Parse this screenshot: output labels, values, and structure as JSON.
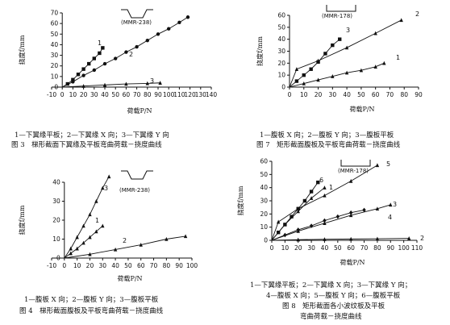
{
  "chart_data": [
    {
      "id": "fig3",
      "type": "line",
      "xlabel": "荷载P/N",
      "ylabel": "挠度f/mm",
      "annotation": "(MMR-238)",
      "xlim": [
        -10,
        140
      ],
      "ylim": [
        0,
        70
      ],
      "xticks": [
        -10,
        0,
        10,
        20,
        30,
        40,
        50,
        60,
        70,
        80,
        90,
        100,
        110,
        120,
        130,
        140
      ],
      "yticks": [
        0,
        10,
        20,
        30,
        40,
        50,
        60,
        70
      ],
      "series": [
        {
          "name": "1",
          "marker": "square",
          "x": [
            0,
            5,
            10,
            15,
            20,
            25,
            30,
            35,
            38
          ],
          "y": [
            0,
            3,
            7,
            12,
            17,
            22,
            27,
            32,
            37
          ]
        },
        {
          "name": "2",
          "marker": "circle",
          "x": [
            0,
            10,
            20,
            30,
            40,
            50,
            60,
            70,
            80,
            90,
            100,
            110,
            118
          ],
          "y": [
            0,
            5,
            11,
            16,
            22,
            27,
            33,
            38,
            44,
            50,
            55,
            61,
            66
          ]
        },
        {
          "name": "3",
          "marker": "triangle",
          "x": [
            0,
            20,
            40,
            60,
            80,
            92
          ],
          "y": [
            0,
            1,
            2,
            3,
            3.5,
            4
          ]
        }
      ],
      "caption_line1": "1—下翼缘平板；2—下翼缘 X 向；3—下翼缘 Y 向",
      "caption_line2": "图 3　梯形截面下翼缘及平板弯曲荷载－挠度曲线"
    },
    {
      "id": "fig7",
      "type": "line",
      "xlabel": "荷载P/N",
      "ylabel": "挠度f/mm",
      "annotation": "(MMR-178)",
      "xlim": [
        0,
        90
      ],
      "ylim": [
        0,
        60
      ],
      "xticks": [
        0,
        10,
        20,
        30,
        40,
        50,
        60,
        70,
        80,
        90
      ],
      "yticks": [
        0,
        10,
        20,
        30,
        40,
        50,
        60
      ],
      "series": [
        {
          "name": "1",
          "marker": "triangle",
          "x": [
            0,
            10,
            20,
            30,
            40,
            50,
            60,
            66
          ],
          "y": [
            0,
            3,
            6,
            9,
            12,
            14,
            17,
            20
          ]
        },
        {
          "name": "2",
          "marker": "triangle",
          "x": [
            0,
            5,
            20,
            40,
            60,
            78
          ],
          "y": [
            0,
            15,
            22,
            33,
            45,
            56
          ]
        },
        {
          "name": "3",
          "marker": "square",
          "x": [
            0,
            5,
            10,
            15,
            20,
            25,
            30,
            35
          ],
          "y": [
            0,
            5,
            10,
            15,
            21,
            28,
            35,
            40
          ]
        }
      ],
      "caption_line1": "1—腹板 X 向；2—腹板 Y 向；3—腹板平板",
      "caption_line2": "图 7　矩形截面腹板及平板弯曲荷载－挠度曲线"
    },
    {
      "id": "fig4",
      "type": "line",
      "xlabel": "荷载P/N",
      "ylabel": "挠度f/mm",
      "annotation": "(MMR-238)",
      "xlim": [
        -10,
        100
      ],
      "ylim": [
        0,
        40
      ],
      "xticks": [
        -10,
        0,
        10,
        20,
        30,
        40,
        50,
        60,
        70,
        80,
        90,
        100
      ],
      "yticks": [
        0,
        10,
        20,
        30,
        40
      ],
      "series": [
        {
          "name": "1",
          "marker": "triangle",
          "x": [
            0,
            5,
            10,
            15,
            20,
            25,
            30
          ],
          "y": [
            0,
            2.5,
            5,
            8,
            11,
            14,
            17
          ]
        },
        {
          "name": "2",
          "marker": "triangle",
          "x": [
            0,
            20,
            40,
            60,
            80,
            95
          ],
          "y": [
            0,
            2,
            4.5,
            7,
            10,
            11.5
          ]
        },
        {
          "name": "3",
          "marker": "triangle",
          "x": [
            0,
            5,
            10,
            15,
            20,
            25,
            30,
            35
          ],
          "y": [
            0,
            5,
            11,
            17,
            23,
            30,
            37,
            43
          ]
        }
      ],
      "caption_line1": "1—腹板 X 向；2—腹板 Y 向；3—腹板平板",
      "caption_line2": "图 4　梯形截面腹板及平板弯曲荷载－挠度曲线"
    },
    {
      "id": "fig8",
      "type": "line",
      "xlabel": "荷载P/N",
      "ylabel": "挠度f/mm",
      "annotation": "(MMR-178)",
      "xlim": [
        0,
        110
      ],
      "ylim": [
        0,
        60
      ],
      "xticks": [
        0,
        10,
        20,
        30,
        40,
        50,
        60,
        70,
        80,
        90,
        100,
        110
      ],
      "yticks": [
        0,
        10,
        20,
        30,
        40,
        50,
        60
      ],
      "series": [
        {
          "name": "1",
          "marker": "triangle",
          "x": [
            0,
            10,
            20,
            30,
            40
          ],
          "y": [
            0,
            12,
            22,
            32,
            40
          ]
        },
        {
          "name": "2",
          "marker": "triangle",
          "x": [
            0,
            20,
            40,
            60,
            80,
            104
          ],
          "y": [
            0,
            0.5,
            0.8,
            1,
            1.2,
            1.5
          ]
        },
        {
          "name": "3",
          "marker": "triangle",
          "x": [
            0,
            20,
            40,
            60,
            80,
            90
          ],
          "y": [
            0,
            7,
            13,
            19,
            24,
            27
          ]
        },
        {
          "name": "4",
          "marker": "diamond",
          "x": [
            0,
            10,
            20,
            30,
            40,
            50,
            60,
            70
          ],
          "y": [
            0,
            4,
            8,
            11,
            15,
            18,
            21,
            23
          ]
        },
        {
          "name": "5",
          "marker": "triangle",
          "x": [
            0,
            5,
            20,
            40,
            60,
            80
          ],
          "y": [
            0,
            14,
            24,
            34,
            45,
            57
          ]
        },
        {
          "name": "6",
          "marker": "square",
          "x": [
            0,
            5,
            10,
            15,
            20,
            25,
            30,
            35
          ],
          "y": [
            0,
            6,
            12,
            18,
            24,
            30,
            37,
            44
          ]
        }
      ],
      "caption_line1": "1—下翼缘平板；2—下翼缘 X 向；3—下翼缘 Y 向；",
      "caption_line2": "4—腹板 X 向；5—腹板 Y 向；6—腹板平板",
      "caption_line3": "图 8　矩形截面各小波纹板及平板",
      "caption_line4": "弯曲荷载－挠度曲线"
    }
  ]
}
